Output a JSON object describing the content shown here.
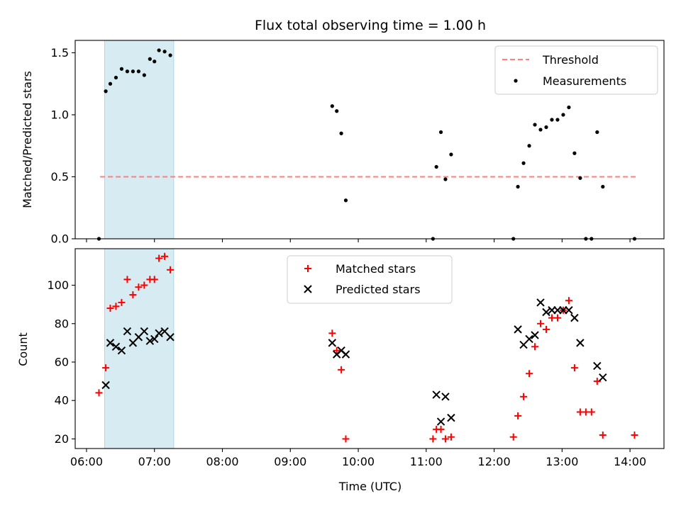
{
  "chart_data": [
    {
      "type": "scatter",
      "title": "Flux total observing time = 1.00 h",
      "xlabel": "",
      "ylabel": "Matched/Predicted stars",
      "ylim": [
        0,
        1.6
      ],
      "yticks": [
        0.0,
        0.5,
        1.0,
        1.5
      ],
      "ytick_labels": [
        "0.0",
        "0.5",
        "1.0",
        "1.5"
      ],
      "xlim": [
        "05:50",
        "14:30"
      ],
      "xticks": [
        "06:00",
        "07:00",
        "08:00",
        "09:00",
        "10:00",
        "11:00",
        "12:00",
        "13:00",
        "14:00"
      ],
      "show_xtick_labels": false,
      "shaded_span": {
        "start": "06:16",
        "end": "07:17",
        "color": "#add8e6"
      },
      "legend_position": "upper right",
      "threshold": {
        "name": "Threshold",
        "value": 0.5,
        "x_range": [
          "06:12",
          "14:05"
        ],
        "color": "#ff7f7f"
      },
      "series": [
        {
          "name": "Measurements",
          "color": "#000000",
          "marker": "dot",
          "points": [
            [
              "06:11",
              0.0
            ],
            [
              "06:17",
              1.19
            ],
            [
              "06:21",
              1.25
            ],
            [
              "06:26",
              1.3
            ],
            [
              "06:31",
              1.37
            ],
            [
              "06:36",
              1.35
            ],
            [
              "06:41",
              1.35
            ],
            [
              "06:46",
              1.35
            ],
            [
              "06:51",
              1.32
            ],
            [
              "06:56",
              1.45
            ],
            [
              "07:00",
              1.43
            ],
            [
              "07:04",
              1.52
            ],
            [
              "07:09",
              1.51
            ],
            [
              "07:14",
              1.48
            ],
            [
              "09:37",
              1.07
            ],
            [
              "09:41",
              1.03
            ],
            [
              "09:45",
              0.85
            ],
            [
              "09:49",
              0.31
            ],
            [
              "11:06",
              0.0
            ],
            [
              "11:09",
              0.58
            ],
            [
              "11:13",
              0.86
            ],
            [
              "11:17",
              0.48
            ],
            [
              "11:22",
              0.68
            ],
            [
              "12:17",
              0.0
            ],
            [
              "12:21",
              0.42
            ],
            [
              "12:26",
              0.61
            ],
            [
              "12:31",
              0.75
            ],
            [
              "12:36",
              0.92
            ],
            [
              "12:41",
              0.88
            ],
            [
              "12:46",
              0.9
            ],
            [
              "12:51",
              0.96
            ],
            [
              "12:56",
              0.96
            ],
            [
              "13:01",
              1.0
            ],
            [
              "13:06",
              1.06
            ],
            [
              "13:11",
              0.69
            ],
            [
              "13:16",
              0.49
            ],
            [
              "13:21",
              0.0
            ],
            [
              "13:26",
              0.0
            ],
            [
              "13:31",
              0.86
            ],
            [
              "13:36",
              0.42
            ],
            [
              "14:04",
              0.0
            ]
          ]
        }
      ]
    },
    {
      "type": "scatter",
      "title": "",
      "xlabel": "Time (UTC)",
      "ylabel": "Count",
      "ylim": [
        15,
        119
      ],
      "yticks": [
        20,
        40,
        60,
        80,
        100
      ],
      "ytick_labels": [
        "20",
        "40",
        "60",
        "80",
        "100"
      ],
      "xlim": [
        "05:50",
        "14:30"
      ],
      "xticks": [
        "06:00",
        "07:00",
        "08:00",
        "09:00",
        "10:00",
        "11:00",
        "12:00",
        "13:00",
        "14:00"
      ],
      "xtick_labels": [
        "06:00",
        "07:00",
        "08:00",
        "09:00",
        "10:00",
        "11:00",
        "12:00",
        "13:00",
        "14:00"
      ],
      "shaded_span": {
        "start": "06:16",
        "end": "07:17",
        "color": "#add8e6"
      },
      "legend_position": "upper center",
      "series": [
        {
          "name": "Matched stars",
          "color": "#ff0000",
          "marker": "plus",
          "points": [
            [
              "06:11",
              44
            ],
            [
              "06:17",
              57
            ],
            [
              "06:21",
              88
            ],
            [
              "06:26",
              89
            ],
            [
              "06:31",
              91
            ],
            [
              "06:36",
              103
            ],
            [
              "06:41",
              95
            ],
            [
              "06:46",
              99
            ],
            [
              "06:51",
              100
            ],
            [
              "06:56",
              103
            ],
            [
              "07:00",
              103
            ],
            [
              "07:04",
              114
            ],
            [
              "07:09",
              115
            ],
            [
              "07:14",
              108
            ],
            [
              "09:37",
              75
            ],
            [
              "09:41",
              66
            ],
            [
              "09:45",
              56
            ],
            [
              "09:49",
              20
            ],
            [
              "11:06",
              20
            ],
            [
              "11:09",
              25
            ],
            [
              "11:13",
              25
            ],
            [
              "11:17",
              20
            ],
            [
              "11:22",
              21
            ],
            [
              "12:17",
              21
            ],
            [
              "12:21",
              32
            ],
            [
              "12:26",
              42
            ],
            [
              "12:31",
              54
            ],
            [
              "12:36",
              68
            ],
            [
              "12:41",
              80
            ],
            [
              "12:46",
              77
            ],
            [
              "12:51",
              83
            ],
            [
              "12:56",
              83
            ],
            [
              "13:01",
              87
            ],
            [
              "13:06",
              92
            ],
            [
              "13:11",
              57
            ],
            [
              "13:16",
              34
            ],
            [
              "13:21",
              34
            ],
            [
              "13:26",
              34
            ],
            [
              "13:31",
              50
            ],
            [
              "13:36",
              22
            ],
            [
              "14:04",
              22
            ]
          ]
        },
        {
          "name": "Predicted stars",
          "color": "#000000",
          "marker": "x",
          "points": [
            [
              "06:17",
              48
            ],
            [
              "06:21",
              70
            ],
            [
              "06:26",
              68
            ],
            [
              "06:31",
              66
            ],
            [
              "06:36",
              76
            ],
            [
              "06:41",
              70
            ],
            [
              "06:46",
              73
            ],
            [
              "06:51",
              76
            ],
            [
              "06:56",
              71
            ],
            [
              "07:00",
              72
            ],
            [
              "07:04",
              75
            ],
            [
              "07:09",
              76
            ],
            [
              "07:14",
              73
            ],
            [
              "09:37",
              70
            ],
            [
              "09:41",
              64
            ],
            [
              "09:45",
              66
            ],
            [
              "09:49",
              64
            ],
            [
              "11:09",
              43
            ],
            [
              "11:13",
              29
            ],
            [
              "11:17",
              42
            ],
            [
              "11:22",
              31
            ],
            [
              "12:21",
              77
            ],
            [
              "12:26",
              69
            ],
            [
              "12:31",
              72
            ],
            [
              "12:36",
              74
            ],
            [
              "12:41",
              91
            ],
            [
              "12:46",
              86
            ],
            [
              "12:51",
              87
            ],
            [
              "12:56",
              87
            ],
            [
              "13:01",
              87
            ],
            [
              "13:06",
              87
            ],
            [
              "13:11",
              83
            ],
            [
              "13:16",
              70
            ],
            [
              "13:31",
              58
            ],
            [
              "13:36",
              52
            ]
          ]
        }
      ]
    }
  ]
}
